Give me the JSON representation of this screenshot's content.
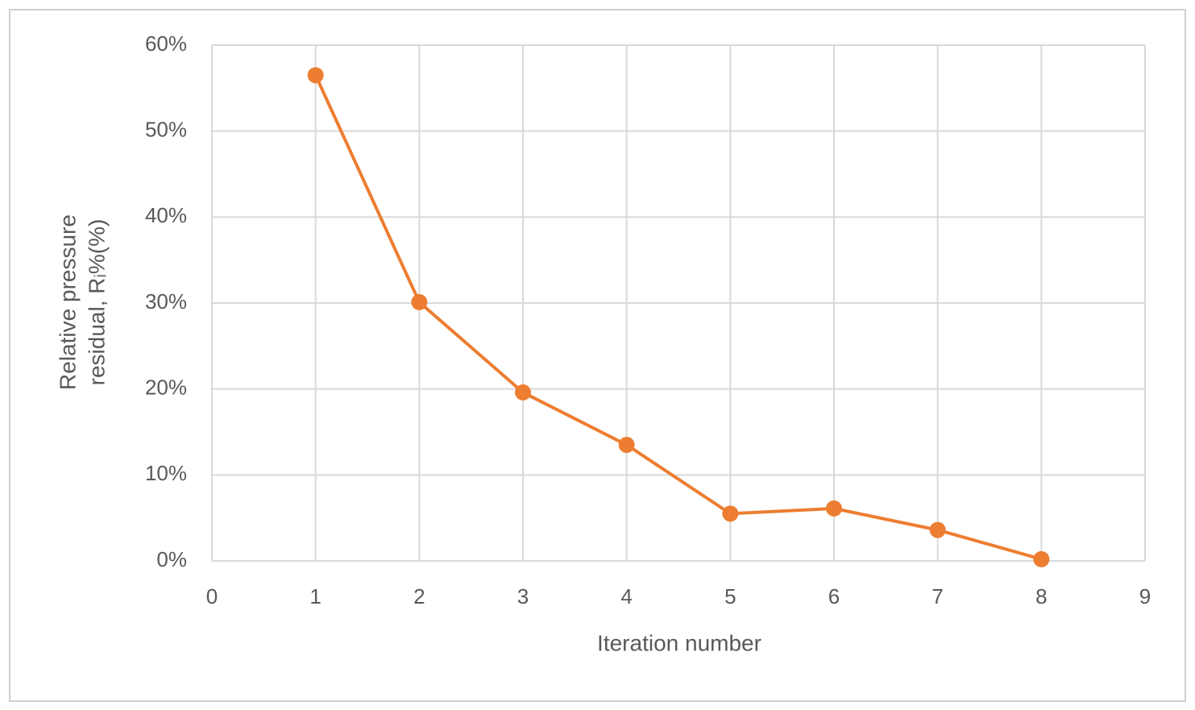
{
  "chart_data": {
    "type": "line",
    "xlabel": "Iteration number",
    "ylabel": [
      "Relative pressure",
      "residual, Rᵢ%(%)"
    ],
    "x": [
      1,
      2,
      3,
      4,
      5,
      6,
      7,
      8
    ],
    "values": [
      56.5,
      30.1,
      19.6,
      13.5,
      5.5,
      6.1,
      3.6,
      0.2
    ],
    "color": "#ed7d31",
    "xlim": [
      0,
      9
    ],
    "xticks": [
      0,
      1,
      2,
      3,
      4,
      5,
      6,
      7,
      8,
      9
    ],
    "ylim": [
      0,
      60
    ],
    "yticks": [
      {
        "value": 0,
        "label": "0%"
      },
      {
        "value": 10,
        "label": "10%"
      },
      {
        "value": 20,
        "label": "20%"
      },
      {
        "value": 30,
        "label": "30%"
      },
      {
        "value": 40,
        "label": "40%"
      },
      {
        "value": 50,
        "label": "50%"
      },
      {
        "value": 60,
        "label": "60%"
      }
    ],
    "grid": true
  }
}
